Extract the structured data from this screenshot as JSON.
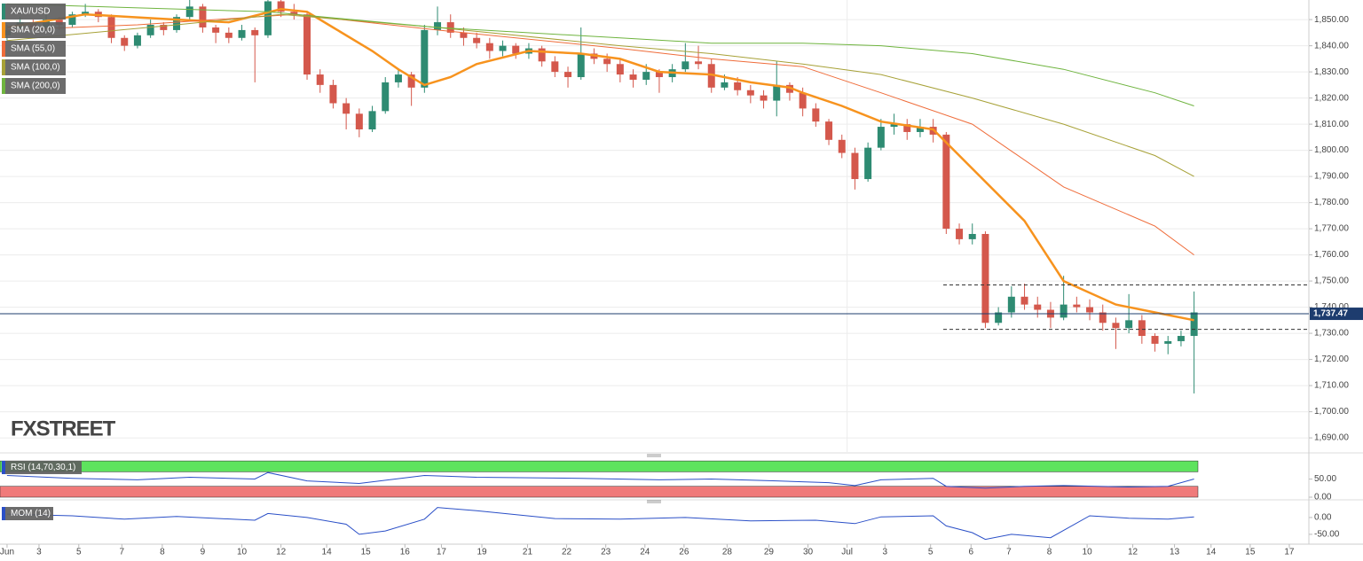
{
  "chart_data": [
    {
      "type": "candlestick",
      "title": "XAU/USD",
      "watermark": "FXSTREET",
      "up_color": "#2e8b72",
      "down_color": "#d4584c",
      "grid": true,
      "xlim": [
        -0.54,
        99.8
      ],
      "ylim": [
        1684.6,
        1857.5
      ],
      "yticks": [
        {
          "value": 1690,
          "label": "1,690.00"
        },
        {
          "value": 1700,
          "label": "1,700.00"
        },
        {
          "value": 1710,
          "label": "1,710.00"
        },
        {
          "value": 1720,
          "label": "1,720.00"
        },
        {
          "value": 1730,
          "label": "1,730.00"
        },
        {
          "value": 1740,
          "label": "1,740.00"
        },
        {
          "value": 1750,
          "label": "1,750.00"
        },
        {
          "value": 1760,
          "label": "1,760.00"
        },
        {
          "value": 1770,
          "label": "1,770.00"
        },
        {
          "value": 1780,
          "label": "1,780.00"
        },
        {
          "value": 1790,
          "label": "1,790.00"
        },
        {
          "value": 1800,
          "label": "1,800.00"
        },
        {
          "value": 1810,
          "label": "1,810.00"
        },
        {
          "value": 1820,
          "label": "1,820.00"
        },
        {
          "value": 1830,
          "label": "1,830.00"
        },
        {
          "value": 1840,
          "label": "1,840.00"
        },
        {
          "value": 1850,
          "label": "1,850.00"
        }
      ],
      "xticks": [
        {
          "value": 0,
          "label": "Jun"
        },
        {
          "value": 2.45,
          "label": "3"
        },
        {
          "value": 5.5,
          "label": "5"
        },
        {
          "value": 8.8,
          "label": "7"
        },
        {
          "value": 11.9,
          "label": "8"
        },
        {
          "value": 15.0,
          "label": "9"
        },
        {
          "value": 18.0,
          "label": "10"
        },
        {
          "value": 21.0,
          "label": "12"
        },
        {
          "value": 24.5,
          "label": "14"
        },
        {
          "value": 27.5,
          "label": "15"
        },
        {
          "value": 30.5,
          "label": "16"
        },
        {
          "value": 33.3,
          "label": "17"
        },
        {
          "value": 36.4,
          "label": "19"
        },
        {
          "value": 39.9,
          "label": "21"
        },
        {
          "value": 42.9,
          "label": "22"
        },
        {
          "value": 45.9,
          "label": "23"
        },
        {
          "value": 48.9,
          "label": "24"
        },
        {
          "value": 51.9,
          "label": "26"
        },
        {
          "value": 55.2,
          "label": "28"
        },
        {
          "value": 58.4,
          "label": "29"
        },
        {
          "value": 61.4,
          "label": "30"
        },
        {
          "value": 64.4,
          "label": "Jul"
        },
        {
          "value": 67.3,
          "label": "3"
        },
        {
          "value": 70.8,
          "label": "5"
        },
        {
          "value": 73.9,
          "label": "6"
        },
        {
          "value": 76.8,
          "label": "7"
        },
        {
          "value": 79.9,
          "label": "8"
        },
        {
          "value": 82.8,
          "label": "10"
        },
        {
          "value": 86.3,
          "label": "12"
        },
        {
          "value": 89.5,
          "label": "13"
        },
        {
          "value": 92.3,
          "label": "14"
        },
        {
          "value": 95.3,
          "label": "15"
        },
        {
          "value": 98.3,
          "label": "17"
        }
      ],
      "last_price": {
        "value": 1737.47,
        "label": "1,737.47"
      },
      "levels": [
        1748.5,
        1731.5
      ],
      "candles": [
        [
          1844,
          1848,
          1842,
          1846
        ],
        [
          1846,
          1851,
          1845,
          1849
        ],
        [
          1849,
          1850,
          1845,
          1847
        ],
        [
          1847,
          1852,
          1846,
          1850
        ],
        [
          1850,
          1851,
          1846,
          1848
        ],
        [
          1848,
          1853,
          1847,
          1852
        ],
        [
          1852,
          1856,
          1851,
          1853
        ],
        [
          1853,
          1854,
          1849,
          1851
        ],
        [
          1851,
          1852,
          1841,
          1843
        ],
        [
          1843,
          1844,
          1838,
          1840
        ],
        [
          1840,
          1845,
          1839,
          1844
        ],
        [
          1844,
          1850,
          1843,
          1848
        ],
        [
          1848,
          1849,
          1844,
          1846
        ],
        [
          1846,
          1852,
          1845,
          1851
        ],
        [
          1851,
          1858,
          1850,
          1855
        ],
        [
          1855,
          1856,
          1845,
          1847
        ],
        [
          1847,
          1848,
          1841,
          1845
        ],
        [
          1845,
          1847,
          1841,
          1843
        ],
        [
          1843,
          1848,
          1842,
          1846
        ],
        [
          1846,
          1847,
          1826,
          1844
        ],
        [
          1844,
          1859,
          1843,
          1857
        ],
        [
          1857,
          1858,
          1851,
          1853
        ],
        [
          1853,
          1856,
          1850,
          1852
        ],
        [
          1852,
          1853,
          1827,
          1829
        ],
        [
          1829,
          1831,
          1822,
          1825
        ],
        [
          1825,
          1827,
          1816,
          1818
        ],
        [
          1818,
          1820,
          1808,
          1814
        ],
        [
          1814,
          1816,
          1805,
          1808
        ],
        [
          1808,
          1817,
          1807,
          1815
        ],
        [
          1815,
          1828,
          1814,
          1826
        ],
        [
          1826,
          1831,
          1824,
          1829
        ],
        [
          1829,
          1830,
          1817,
          1824
        ],
        [
          1824,
          1848,
          1822,
          1846
        ],
        [
          1846,
          1855,
          1844,
          1849
        ],
        [
          1849,
          1852,
          1843,
          1845
        ],
        [
          1845,
          1847,
          1840,
          1843
        ],
        [
          1843,
          1845,
          1839,
          1841
        ],
        [
          1841,
          1843,
          1835,
          1838
        ],
        [
          1838,
          1842,
          1836,
          1840
        ],
        [
          1840,
          1841,
          1835,
          1837
        ],
        [
          1837,
          1841,
          1835,
          1839
        ],
        [
          1839,
          1840,
          1832,
          1834
        ],
        [
          1834,
          1836,
          1828,
          1830
        ],
        [
          1830,
          1832,
          1824,
          1828
        ],
        [
          1828,
          1847,
          1827,
          1837
        ],
        [
          1837,
          1839,
          1833,
          1835
        ],
        [
          1835,
          1837,
          1830,
          1833
        ],
        [
          1833,
          1835,
          1826,
          1829
        ],
        [
          1829,
          1831,
          1824,
          1827
        ],
        [
          1827,
          1833,
          1825,
          1830
        ],
        [
          1830,
          1831,
          1822,
          1828
        ],
        [
          1828,
          1833,
          1826,
          1831
        ],
        [
          1831,
          1841,
          1830,
          1834
        ],
        [
          1834,
          1840,
          1831,
          1833
        ],
        [
          1833,
          1835,
          1822,
          1824
        ],
        [
          1824,
          1829,
          1823,
          1826
        ],
        [
          1826,
          1828,
          1821,
          1823
        ],
        [
          1823,
          1825,
          1818,
          1821
        ],
        [
          1821,
          1823,
          1816,
          1819
        ],
        [
          1819,
          1834,
          1813,
          1825
        ],
        [
          1825,
          1826,
          1819,
          1822
        ],
        [
          1822,
          1824,
          1813,
          1816
        ],
        [
          1816,
          1818,
          1809,
          1811
        ],
        [
          1811,
          1812,
          1802,
          1804
        ],
        [
          1804,
          1806,
          1797,
          1799
        ],
        [
          1799,
          1801,
          1785,
          1789
        ],
        [
          1789,
          1803,
          1788,
          1801
        ],
        [
          1801,
          1812,
          1800,
          1809
        ],
        [
          1809,
          1814,
          1806,
          1810
        ],
        [
          1810,
          1812,
          1804,
          1807
        ],
        [
          1807,
          1812,
          1805,
          1809
        ],
        [
          1809,
          1812,
          1803,
          1806
        ],
        [
          1806,
          1807,
          1768,
          1770
        ],
        [
          1770,
          1772,
          1764,
          1766
        ],
        [
          1766,
          1772,
          1764,
          1768
        ],
        [
          1768,
          1769,
          1732,
          1734
        ],
        [
          1734,
          1740,
          1733,
          1738
        ],
        [
          1738,
          1748,
          1736,
          1744
        ],
        [
          1744,
          1749,
          1739,
          1741
        ],
        [
          1741,
          1744,
          1736,
          1739
        ],
        [
          1739,
          1742,
          1732,
          1736
        ],
        [
          1736,
          1752,
          1735,
          1741
        ],
        [
          1741,
          1744,
          1738,
          1740
        ],
        [
          1740,
          1743,
          1735,
          1738
        ],
        [
          1738,
          1741,
          1731,
          1734
        ],
        [
          1734,
          1736,
          1724,
          1732
        ],
        [
          1732,
          1745,
          1730,
          1735
        ],
        [
          1735,
          1737,
          1726,
          1729
        ],
        [
          1729,
          1730,
          1723,
          1726
        ],
        [
          1726,
          1729,
          1722,
          1727
        ],
        [
          1727,
          1731,
          1725,
          1729
        ],
        [
          1729,
          1746,
          1707,
          1738
        ]
      ],
      "series": [
        {
          "name": "SMA (20,0)",
          "color": "#f7931e",
          "width": 2.5,
          "x": [
            0,
            6,
            13,
            17,
            21,
            23,
            25,
            28,
            30,
            32,
            34,
            36,
            40,
            44,
            47,
            50,
            54,
            57,
            60,
            61,
            64,
            67,
            71,
            72,
            74,
            78,
            81,
            85,
            88,
            91
          ],
          "values": [
            1847,
            1852,
            1850,
            1849,
            1854,
            1853,
            1847,
            1838,
            1831,
            1825,
            1828,
            1833,
            1838,
            1837,
            1835,
            1830,
            1829,
            1826,
            1824,
            1822,
            1817,
            1811,
            1808,
            1803,
            1793,
            1773,
            1750,
            1741,
            1738,
            1735
          ]
        },
        {
          "name": "SMA (55,0)",
          "color": "#ef6c3a",
          "width": 1,
          "x": [
            0,
            10,
            22,
            33,
            47,
            54,
            61,
            67,
            74,
            81,
            88,
            91
          ],
          "values": [
            1846,
            1848,
            1852,
            1846,
            1839,
            1835,
            1832,
            1822,
            1810,
            1786,
            1771,
            1760
          ]
        },
        {
          "name": "SMA (100,0)",
          "color": "#a7a137",
          "width": 1,
          "x": [
            0,
            13,
            21,
            33,
            47,
            54,
            61,
            67,
            74,
            81,
            88,
            91
          ],
          "values": [
            1842,
            1848,
            1852,
            1847,
            1840,
            1837,
            1833,
            1829,
            1820,
            1810,
            1798,
            1790
          ]
        },
        {
          "name": "SMA (200,0)",
          "color": "#6fb43f",
          "width": 1,
          "x": [
            0,
            20,
            33,
            47,
            54,
            61,
            67,
            74,
            81,
            88,
            91
          ],
          "values": [
            1856,
            1853,
            1847,
            1843,
            1841,
            1841,
            1840,
            1837,
            1831,
            1822,
            1817
          ]
        }
      ]
    },
    {
      "type": "line",
      "title": "RSI (14,70,30,1)",
      "xlim": [
        -0.54,
        99.8
      ],
      "ylim": [
        0,
        110
      ],
      "yticks": [
        {
          "value": 0,
          "label": "0.00"
        },
        {
          "value": 50,
          "label": "50.00"
        }
      ],
      "bands": [
        {
          "from": 70,
          "to": 100,
          "color": "#5ee35e"
        },
        {
          "from": 0,
          "to": 30,
          "color": "#f07a7a"
        }
      ],
      "series": [
        {
          "color": "#2a4fc7",
          "x": [
            0,
            5,
            10,
            14,
            19,
            20,
            23,
            27,
            32,
            36,
            44,
            50,
            54,
            59,
            63,
            65,
            67,
            71,
            72,
            75,
            78,
            81,
            86,
            89,
            91
          ],
          "values": [
            60,
            52,
            48,
            55,
            50,
            68,
            45,
            38,
            60,
            55,
            52,
            48,
            50,
            45,
            40,
            32,
            48,
            52,
            30,
            25,
            30,
            32,
            28,
            30,
            50
          ]
        }
      ]
    },
    {
      "type": "line",
      "title": "MOM (14)",
      "xlim": [
        -0.54,
        99.8
      ],
      "ylim": [
        -74,
        42
      ],
      "yticks": [
        {
          "value": 0,
          "label": "0.00"
        },
        {
          "value": -50,
          "label": "-50.00"
        }
      ],
      "series": [
        {
          "color": "#2a4fc7",
          "x": [
            0,
            5,
            9,
            13,
            19,
            20,
            23,
            26,
            27,
            29,
            32,
            33,
            36,
            42,
            47,
            52,
            57,
            62,
            65,
            67,
            71,
            72,
            74,
            75,
            77,
            80,
            83,
            86,
            89,
            91
          ],
          "values": [
            10,
            5,
            -5,
            3,
            -8,
            12,
            0,
            -20,
            -50,
            -40,
            -5,
            30,
            20,
            -3,
            -5,
            0,
            -10,
            -8,
            -18,
            2,
            5,
            -25,
            -45,
            -65,
            -50,
            -60,
            5,
            -2,
            -5,
            2
          ]
        }
      ]
    }
  ]
}
